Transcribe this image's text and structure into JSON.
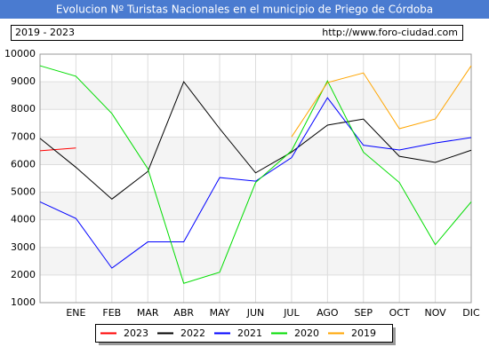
{
  "chart_data": {
    "type": "line",
    "title": "Evolucion Nº Turistas Nacionales en el municipio de Priego de Córdoba",
    "subtitle": "2019 - 2023",
    "source": "http://www.foro-ciudad.com",
    "categories": [
      null,
      "ENE",
      "FEB",
      "MAR",
      "ABR",
      "MAY",
      "JUN",
      "JUL",
      "AGO",
      "SEP",
      "OCT",
      "NOV",
      "DIC"
    ],
    "series": [
      {
        "name": "2023",
        "color": "#ff0000",
        "values": [
          6500,
          6600,
          null,
          null,
          null,
          null,
          null,
          null,
          null,
          null,
          null,
          null,
          null
        ]
      },
      {
        "name": "2022",
        "color": "#000000",
        "values": [
          6950,
          5900,
          4750,
          5750,
          9000,
          7300,
          5700,
          6450,
          7430,
          7650,
          6300,
          6080,
          6520
        ]
      },
      {
        "name": "2021",
        "color": "#0000ff",
        "values": [
          4650,
          4050,
          2250,
          3200,
          3200,
          5530,
          5400,
          6250,
          8420,
          6700,
          6530,
          6780,
          6980
        ]
      },
      {
        "name": "2020",
        "color": "#00dd00",
        "values": [
          9580,
          9200,
          7850,
          5850,
          1700,
          2100,
          5350,
          6500,
          9030,
          6450,
          5350,
          3100,
          4650
        ]
      },
      {
        "name": "2019",
        "color": "#ffa500",
        "values": [
          null,
          null,
          null,
          null,
          null,
          null,
          null,
          7000,
          8970,
          9320,
          7300,
          7650,
          9580
        ]
      }
    ],
    "ylim": [
      1000,
      10000
    ],
    "yticks": [
      1000,
      2000,
      3000,
      4000,
      5000,
      6000,
      7000,
      8000,
      9000,
      10000
    ],
    "grid": true
  }
}
